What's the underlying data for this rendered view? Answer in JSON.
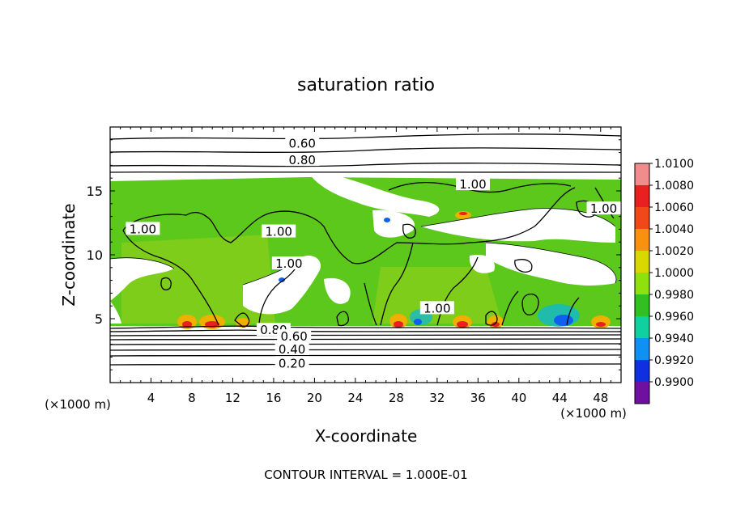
{
  "chart_data": {
    "type": "heatmap",
    "title": "saturation ratio",
    "xlabel": "X-coordinate",
    "ylabel": "Z-coordinate",
    "x_unit_left": "(×1000 m)",
    "x_unit_right": "(×1000 m)",
    "xlim": [
      0,
      50
    ],
    "ylim": [
      0,
      20
    ],
    "x_ticks": [
      "4",
      "8",
      "12",
      "16",
      "20",
      "24",
      "28",
      "32",
      "36",
      "40",
      "44",
      "48"
    ],
    "x_tick_values": [
      4,
      8,
      12,
      16,
      20,
      24,
      28,
      32,
      36,
      40,
      44,
      48
    ],
    "y_ticks": [
      "5",
      "10",
      "15"
    ],
    "y_tick_values": [
      5,
      10,
      15
    ],
    "colorbar": {
      "labels": [
        "1.0100",
        "1.0080",
        "1.0060",
        "1.0040",
        "1.0020",
        "1.0000",
        "0.9980",
        "0.9960",
        "0.9940",
        "0.9920",
        "0.9900"
      ],
      "colors": [
        "#f08c8c",
        "#e82020",
        "#f04818",
        "#f89010",
        "#d8d800",
        "#90e010",
        "#30c020",
        "#10d0a0",
        "#1090f0",
        "#1030e0",
        "#7010a0"
      ]
    },
    "contour_labels": [
      {
        "text": "0.60",
        "x": 18.8,
        "z": 18.7
      },
      {
        "text": "0.80",
        "x": 18.8,
        "z": 17.4
      },
      {
        "text": "1.00",
        "x": 35.5,
        "z": 15.5
      },
      {
        "text": "1.00",
        "x": 48.3,
        "z": 13.6
      },
      {
        "text": "1.00",
        "x": 3.2,
        "z": 12.0
      },
      {
        "text": "1.00",
        "x": 16.5,
        "z": 11.8
      },
      {
        "text": "1.00",
        "x": 17.5,
        "z": 9.3
      },
      {
        "text": "1.00",
        "x": 32.0,
        "z": 5.8
      },
      {
        "text": "0.80",
        "x": 16.0,
        "z": 4.1
      },
      {
        "text": "0.60",
        "x": 18.0,
        "z": 3.6
      },
      {
        "text": "0.40",
        "x": 17.8,
        "z": 2.6
      },
      {
        "text": "0.20",
        "x": 17.8,
        "z": 1.5
      }
    ],
    "footer": "CONTOUR INTERVAL = 1.000E-01",
    "grid": false
  }
}
